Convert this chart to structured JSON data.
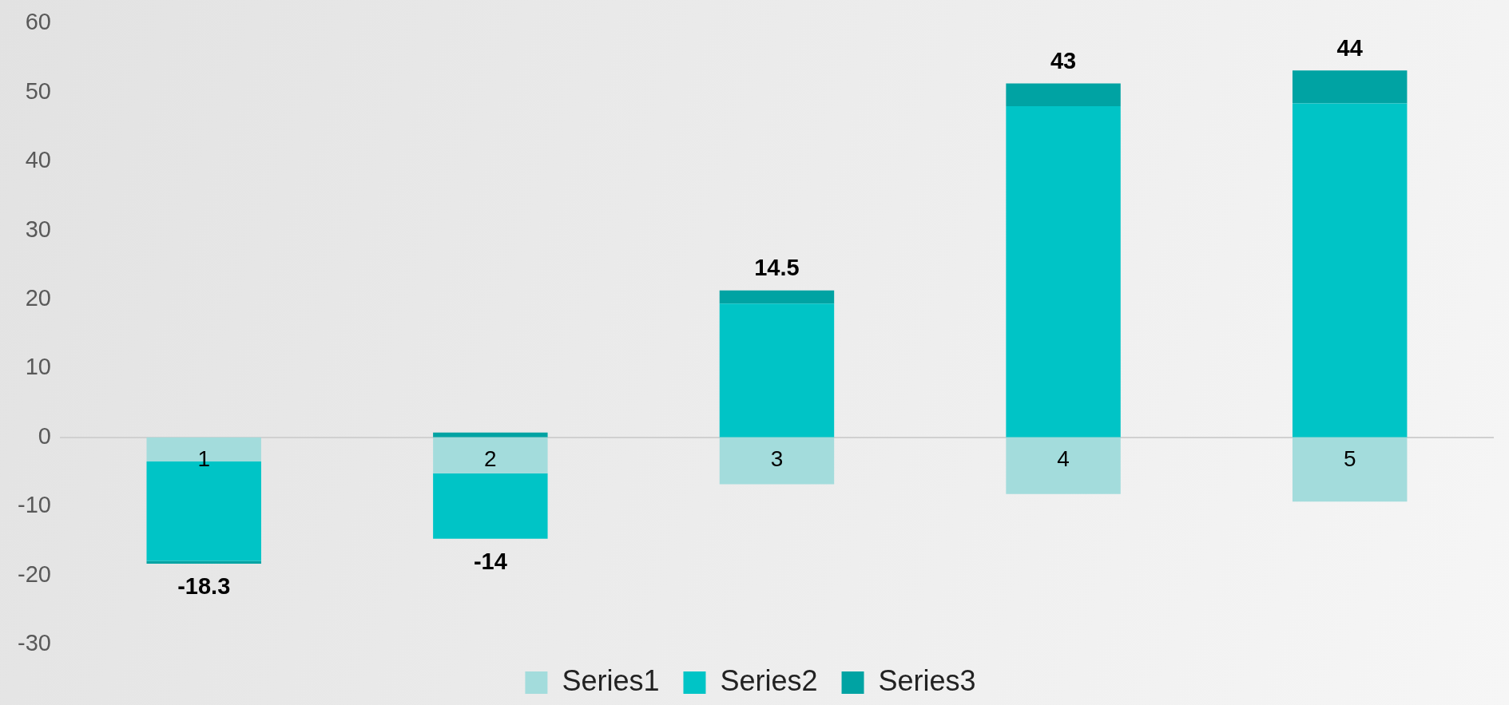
{
  "chart_data": {
    "type": "bar",
    "stacked": true,
    "categories": [
      "1",
      "2",
      "3",
      "4",
      "5"
    ],
    "series": [
      {
        "name": "Series1",
        "color": "#a3dcdc",
        "values": [
          -3.5,
          -5.2,
          -6.8,
          -8.2,
          -9.3
        ]
      },
      {
        "name": "Series2",
        "color": "#00c4c6",
        "values": [
          -14.4,
          -9.5,
          19.4,
          48.0,
          48.4
        ]
      },
      {
        "name": "Series3",
        "color": "#00a3a3",
        "values": [
          -0.4,
          0.7,
          1.9,
          3.3,
          4.8
        ]
      }
    ],
    "totals": [
      "-18.3",
      "-14",
      "14.5",
      "43",
      "44"
    ],
    "ylim": [
      -30,
      60
    ],
    "yticks": [
      -30,
      -20,
      -10,
      0,
      10,
      20,
      30,
      40,
      50,
      60
    ],
    "grid": false,
    "legend": "bottom"
  }
}
